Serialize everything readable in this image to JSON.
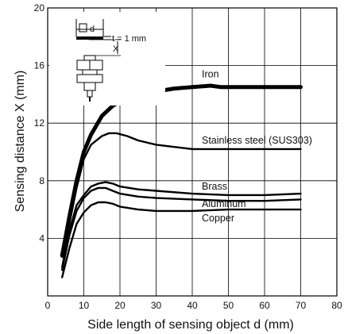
{
  "chart_data": {
    "type": "line",
    "title": "",
    "xlabel": "Side length of sensing object d (mm)",
    "ylabel": "Sensing distance X (mm)",
    "xlim": [
      0,
      80
    ],
    "ylim": [
      0,
      20
    ],
    "xticks": [
      0,
      10,
      20,
      30,
      40,
      50,
      60,
      70,
      80
    ],
    "yticks": [
      4,
      8,
      12,
      16,
      20
    ],
    "grid": true,
    "legend": "inline labels",
    "inset": {
      "d_label": "d",
      "x_label": "X",
      "t_label": "t = 1 mm"
    },
    "series": [
      {
        "name": "Iron",
        "thick": true,
        "x": [
          4,
          6,
          8,
          10,
          12,
          15,
          18,
          20,
          25,
          30,
          35,
          40,
          45,
          48,
          55,
          60,
          65,
          70
        ],
        "y": [
          2.8,
          5.5,
          8.0,
          10.0,
          11.2,
          12.5,
          13.2,
          13.5,
          14.0,
          14.2,
          14.4,
          14.5,
          14.6,
          14.5,
          14.5,
          14.5,
          14.5,
          14.5
        ]
      },
      {
        "name": "Stainless steel (SUS303)",
        "thick": false,
        "x": [
          4,
          6,
          8,
          10,
          12,
          15,
          17,
          19,
          22,
          25,
          30,
          40,
          50,
          60,
          70
        ],
        "y": [
          2.7,
          5.0,
          7.5,
          9.5,
          10.5,
          11.1,
          11.3,
          11.3,
          11.1,
          10.8,
          10.5,
          10.2,
          10.2,
          10.2,
          10.2
        ]
      },
      {
        "name": "Brass",
        "thick": false,
        "x": [
          4,
          6,
          8,
          10,
          12,
          14,
          16,
          18,
          20,
          25,
          30,
          40,
          50,
          60,
          70
        ],
        "y": [
          2.0,
          4.5,
          6.3,
          7.0,
          7.6,
          7.8,
          7.9,
          7.8,
          7.6,
          7.4,
          7.3,
          7.1,
          7.0,
          7.0,
          7.1
        ]
      },
      {
        "name": "Aluminum",
        "thick": false,
        "x": [
          4,
          6,
          8,
          10,
          12,
          14,
          16,
          18,
          20,
          25,
          30,
          40,
          50,
          60,
          70
        ],
        "y": [
          1.8,
          4.2,
          5.9,
          6.8,
          7.3,
          7.5,
          7.5,
          7.3,
          7.1,
          6.9,
          6.8,
          6.7,
          6.6,
          6.6,
          6.7
        ]
      },
      {
        "name": "Copper",
        "thick": false,
        "x": [
          4,
          6,
          8,
          10,
          12,
          14,
          16,
          18,
          20,
          25,
          30,
          40,
          50,
          60,
          70
        ],
        "y": [
          1.3,
          3.3,
          5.0,
          5.8,
          6.3,
          6.5,
          6.5,
          6.4,
          6.2,
          6.0,
          5.9,
          5.9,
          6.0,
          6.0,
          6.0
        ]
      }
    ],
    "label_positions": {
      "Iron": [
        40,
        15.4
      ],
      "Stainless steel (SUS303)": [
        40,
        10.8
      ],
      "Brass": [
        40,
        7.6
      ],
      "Aluminum": [
        40,
        6.4
      ],
      "Copper": [
        40,
        5.4
      ]
    }
  }
}
